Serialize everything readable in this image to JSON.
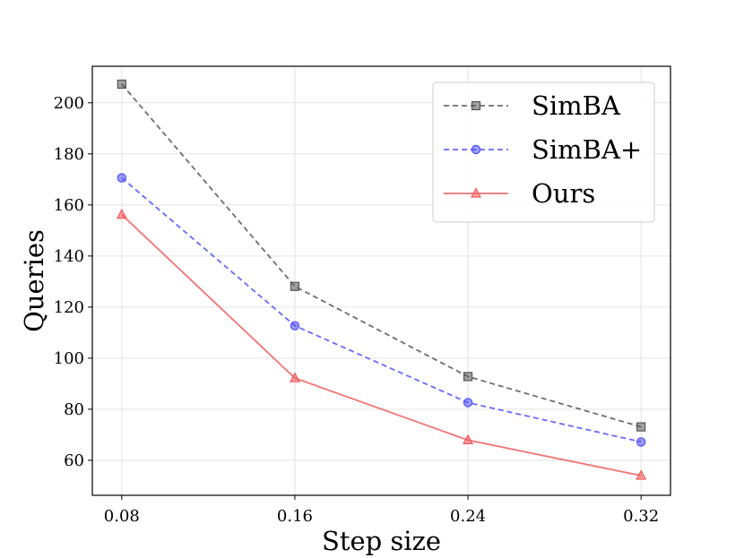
{
  "chart_data": {
    "type": "line",
    "title": "",
    "xlabel": "Step size",
    "ylabel": "Queries",
    "x": [
      0.08,
      0.16,
      0.24,
      0.32
    ],
    "x_tick_labels": [
      "0.08",
      "0.16",
      "0.24",
      "0.32"
    ],
    "y_ticks": [
      60,
      80,
      100,
      120,
      140,
      160,
      180,
      200
    ],
    "xlim": [
      0.0664,
      0.3336
    ],
    "ylim": [
      46.3,
      214.3
    ],
    "grid": true,
    "legend_position": "top-right",
    "series": [
      {
        "name": "SimBA",
        "values": [
          207.3,
          128.1,
          92.8,
          73.1
        ],
        "color": "#555555",
        "style": "dashed",
        "marker": "square"
      },
      {
        "name": "SimBA+",
        "values": [
          170.6,
          112.7,
          82.6,
          67.2
        ],
        "color": "#4d4dff",
        "style": "dashed",
        "marker": "circle"
      },
      {
        "name": "Ours",
        "values": [
          156.2,
          92.2,
          67.9,
          54.0
        ],
        "color": "#f05a5a",
        "style": "solid",
        "marker": "triangle"
      }
    ]
  }
}
